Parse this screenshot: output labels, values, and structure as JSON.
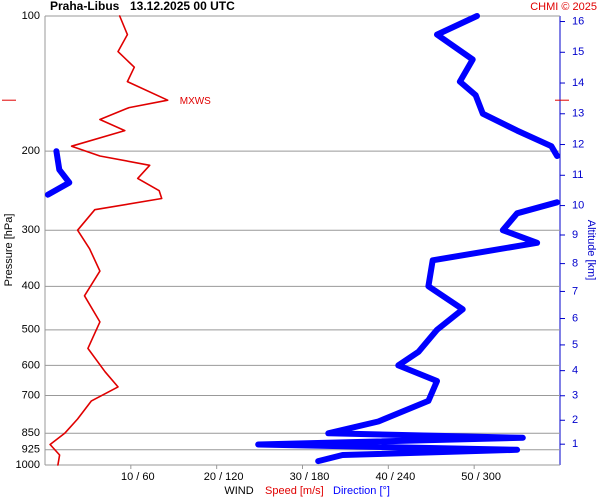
{
  "chart_data": {
    "type": "line",
    "title": "Praha-Libus",
    "subtitle": "13.12.2025 00 UTC",
    "credit": "CHMI © 2025",
    "y_label": "Pressure [hPa]",
    "y2_label": "Altitude [km]",
    "x_label": "WIND",
    "ylim": [
      100,
      1000
    ],
    "log_y": true,
    "yticks": [
      100,
      200,
      300,
      400,
      500,
      600,
      700,
      850,
      925,
      1000
    ],
    "grid": true,
    "xlim": [
      0,
      60
    ],
    "x2lim": [
      0,
      360
    ],
    "xticks": [
      {
        "value": 10,
        "label": "10 / 60"
      },
      {
        "value": 20,
        "label": "20 / 120"
      },
      {
        "value": 30,
        "label": "30 / 180"
      },
      {
        "value": 40,
        "label": "40 / 240"
      },
      {
        "value": 50,
        "label": "50 / 300"
      }
    ],
    "y2ticks": [
      1,
      2,
      3,
      4,
      5,
      6,
      7,
      8,
      9,
      10,
      11,
      12,
      13,
      14,
      15,
      16
    ],
    "annotation": {
      "text": "MXWS",
      "pressure": 154
    },
    "series": [
      {
        "name": "Speed [m/s]",
        "color": "#e00000",
        "pressure": [
          100,
          110,
          120,
          130,
          140,
          154,
          160,
          170,
          180,
          195,
          205,
          215,
          230,
          245,
          255,
          270,
          300,
          330,
          370,
          420,
          480,
          550,
          620,
          670,
          720,
          790,
          850,
          900,
          950,
          1000
        ],
        "values": [
          8.7,
          9.6,
          8.5,
          10.4,
          9.6,
          14.3,
          9.8,
          6.4,
          9.3,
          3.1,
          6.4,
          12.2,
          10.8,
          13.3,
          13.6,
          5.8,
          3.8,
          5.2,
          6.4,
          4.6,
          6.4,
          5.0,
          7.0,
          8.5,
          5.4,
          3.8,
          2.3,
          0.6,
          1.7,
          1.5
        ]
      },
      {
        "name": "Direction [°]",
        "color": "#0000ff",
        "axis": "x2",
        "pressure": [
          100,
          110,
          125,
          140,
          150,
          165,
          180,
          195,
          205,
          null,
          200,
          220,
          235,
          250,
          null,
          260,
          275,
          300,
          320,
          350,
          400,
          450,
          500,
          560,
          600,
          650,
          720,
          800,
          850,
          870,
          900,
          925,
          950,
          980
        ],
        "values": [
          302,
          274,
          299,
          290,
          301,
          306,
          330,
          354,
          358,
          null,
          8,
          10,
          17,
          2,
          null,
          358,
          330,
          320,
          344,
          271,
          268,
          292,
          274,
          261,
          247,
          274,
          268,
          233,
          198,
          334,
          149,
          330,
          208,
          191
        ]
      }
    ]
  }
}
